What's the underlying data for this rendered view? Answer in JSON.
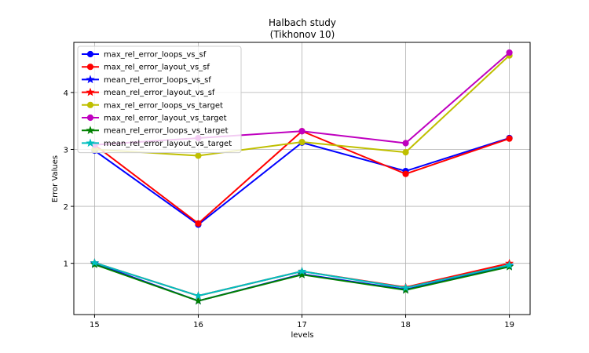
{
  "chart_data": {
    "type": "line",
    "title": [
      "Halbach study",
      "(Tikhonov 10)"
    ],
    "xlabel": "levels",
    "ylabel": "Error Values",
    "x": [
      15,
      16,
      17,
      18,
      19
    ],
    "xlim": [
      14.8,
      19.2
    ],
    "ylim": [
      0.1,
      4.88
    ],
    "xticks": [
      15,
      16,
      17,
      18,
      19
    ],
    "yticks": [
      1,
      2,
      3,
      4
    ],
    "grid": true,
    "legend_placement": "top-left",
    "series": [
      {
        "name": "max_rel_error_loops_vs_sf",
        "color": "#0000ff",
        "marker": "circle",
        "values": [
          2.98,
          1.68,
          3.12,
          2.62,
          3.2
        ]
      },
      {
        "name": "max_rel_error_layout_vs_sf",
        "color": "#ff0000",
        "marker": "circle",
        "values": [
          3.08,
          1.7,
          3.32,
          2.57,
          3.19
        ]
      },
      {
        "name": "mean_rel_error_loops_vs_sf",
        "color": "#0000ff",
        "marker": "star",
        "values": [
          1.0,
          0.34,
          0.81,
          0.54,
          0.95
        ]
      },
      {
        "name": "mean_rel_error_layout_vs_sf",
        "color": "#ff0000",
        "marker": "star",
        "values": [
          1.01,
          0.43,
          0.86,
          0.58,
          1.0
        ]
      },
      {
        "name": "max_rel_error_loops_vs_target",
        "color": "#bfbf00",
        "marker": "circle",
        "values": [
          3.0,
          2.89,
          3.13,
          2.95,
          4.65
        ]
      },
      {
        "name": "max_rel_error_layout_vs_target",
        "color": "#bf00bf",
        "marker": "circle",
        "values": [
          3.08,
          3.2,
          3.32,
          3.11,
          4.7
        ]
      },
      {
        "name": "mean_rel_error_loops_vs_target",
        "color": "#008000",
        "marker": "star",
        "values": [
          0.98,
          0.34,
          0.8,
          0.53,
          0.94
        ]
      },
      {
        "name": "mean_rel_error_layout_vs_target",
        "color": "#00bfbf",
        "marker": "star",
        "values": [
          1.01,
          0.43,
          0.86,
          0.57,
          0.97
        ]
      }
    ]
  }
}
